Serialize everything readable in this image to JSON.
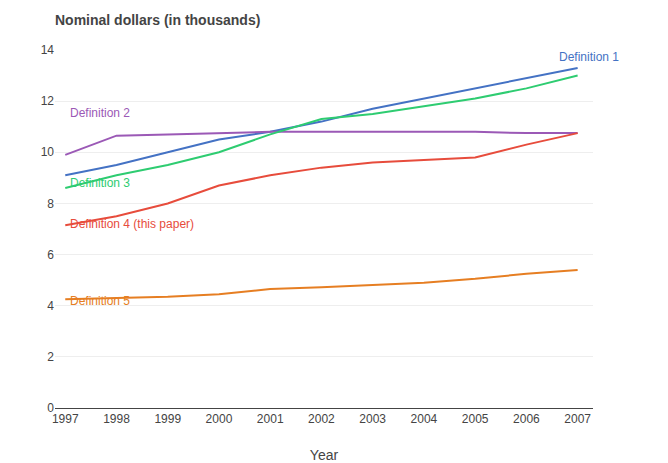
{
  "chart_data": {
    "type": "line",
    "title": "Nominal dollars (in thousands)",
    "xlabel": "Year",
    "x": [
      1997,
      1998,
      1999,
      2000,
      2001,
      2002,
      2003,
      2004,
      2005,
      2006,
      2007
    ],
    "series": [
      {
        "color": "#4472C4",
        "values": [
          9.1,
          9.5,
          10.0,
          10.5,
          10.8,
          11.2,
          11.7,
          12.1,
          12.5,
          12.9,
          13.3
        ]
      },
      {
        "color": "#9B59B6",
        "values": [
          9.9,
          10.65,
          10.7,
          10.75,
          10.8,
          10.8,
          10.8,
          10.8,
          10.8,
          10.75,
          10.75
        ]
      },
      {
        "color": "#2ECC71",
        "values": [
          8.6,
          9.1,
          9.5,
          10.0,
          10.7,
          11.3,
          11.5,
          11.8,
          12.1,
          12.5,
          13.0
        ]
      },
      {
        "color": "#E74C3C",
        "values": [
          7.15,
          7.5,
          8.0,
          8.7,
          9.1,
          9.4,
          9.6,
          9.7,
          9.8,
          10.3,
          10.75
        ]
      },
      {
        "color": "#E67E22",
        "values": [
          4.25,
          4.3,
          4.35,
          4.45,
          4.65,
          4.72,
          4.8,
          4.9,
          5.05,
          5.25,
          5.4
        ]
      }
    ],
    "annotations": [
      {
        "text": "Definition 1",
        "x": 2006.6,
        "y": 13.38,
        "color": "#4472C4"
      },
      {
        "text": "Definition 2",
        "x": 1997.05,
        "y": 11.2,
        "color": "#9B59B6"
      },
      {
        "text": "Definition 3",
        "x": 1997.05,
        "y": 8.45,
        "color": "#2ECC71"
      },
      {
        "text": "Definition 4 (this paper)",
        "x": 1997.05,
        "y": 6.85,
        "color": "#E74C3C"
      },
      {
        "text": "Definition 5",
        "x": 1997.05,
        "y": 3.85,
        "color": "#E67E22"
      }
    ],
    "xlim": [
      1996.8,
      2007.3
    ],
    "ylim": [
      0,
      14
    ],
    "xticks": [
      1997,
      1998,
      1999,
      2000,
      2001,
      2002,
      2003,
      2004,
      2005,
      2006,
      2007
    ],
    "yticks": [
      0,
      2,
      4,
      6,
      8,
      10,
      12,
      14
    ],
    "grid": true
  }
}
